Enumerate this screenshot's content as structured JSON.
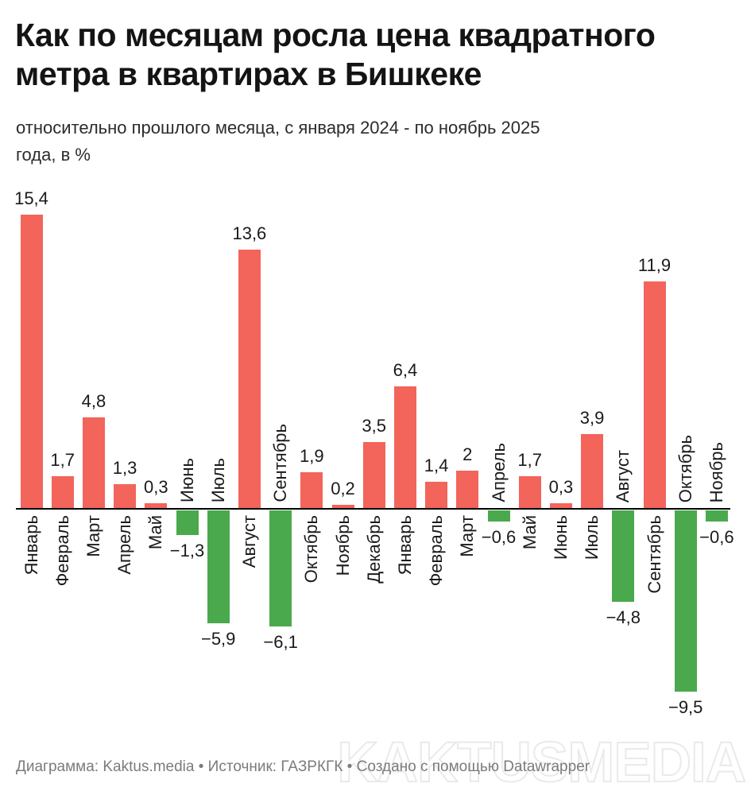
{
  "header": {
    "title_line1": "Как по месяцам росла цена квадратного",
    "title_line2": "метра в квартирах в Бишкеке",
    "subtitle_line1": "относительно прошлого месяца, с января 2024 - по ноябрь 2025",
    "subtitle_line2": "года, в %"
  },
  "chart_data": {
    "type": "bar",
    "title": "Как по месяцам росла цена квадратного метра в квартирах в Бишкеке",
    "subtitle": "относительно прошлого месяца, с января 2024 - по ноябрь 2025 года, в %",
    "unit": "%",
    "baseline": 0,
    "ylim": [
      -9.5,
      15.4
    ],
    "grid": false,
    "legend": false,
    "value_labels": "outside-end",
    "colors": {
      "positive": "#f3645a",
      "negative": "#4aa94d",
      "axis": "#000000",
      "label": "#1a1a1a"
    },
    "categories": [
      "Январь",
      "Февраль",
      "Март",
      "Апрель",
      "Май",
      "Июнь",
      "Июль",
      "Август",
      "Сентябрь",
      "Октябрь",
      "Ноябрь",
      "Декабрь",
      "Январь",
      "Февраль",
      "Март",
      "Апрель",
      "Май",
      "Июнь",
      "Июль",
      "Август",
      "Сентябрь",
      "Октябрь",
      "Ноябрь"
    ],
    "values": [
      15.4,
      1.7,
      4.8,
      1.3,
      0.3,
      -1.3,
      -5.9,
      13.6,
      -6.1,
      1.9,
      0.2,
      3.5,
      6.4,
      1.4,
      2,
      -0.6,
      1.7,
      0.3,
      3.9,
      -4.8,
      11.9,
      -9.5,
      -0.6
    ],
    "display_values": [
      "15,4",
      "1,7",
      "4,8",
      "1,3",
      "0,3",
      "−1,3",
      "−5,9",
      "13,6",
      "−6,1",
      "1,9",
      "0,2",
      "3,5",
      "6,4",
      "1,4",
      "2",
      "−0,6",
      "1,7",
      "0,3",
      "3,9",
      "−4,8",
      "11,9",
      "−9,5",
      "−0,6"
    ]
  },
  "footer": {
    "credit": "Диаграмма: Kaktus.media • Источник: ГАЗРКГК • Создано с помощью Datawrapper"
  },
  "watermark": {
    "text": "KAKTUSMEDIA"
  }
}
